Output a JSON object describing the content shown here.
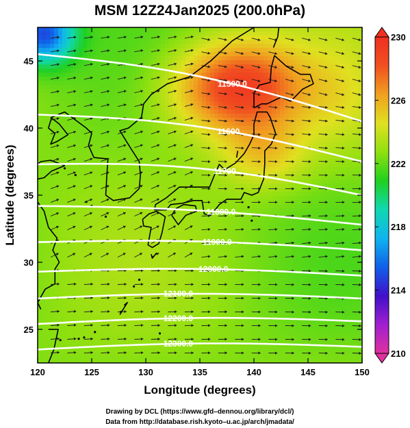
{
  "title": "MSM 12Z24Jan2025 (200.0hPa)",
  "xlabel": "Longitude (degrees)",
  "ylabel": "Latitude  (degrees)",
  "credits": [
    "Drawing by DCL (https://www.gfd–dennou.org/library/dcl/)",
    "Data from http://database.rish.kyoto–u.ac.jp/arch/jmadata/"
  ],
  "colorbar": {
    "min": 210,
    "max": 230,
    "tick_labels": [
      "230",
      "226",
      "222",
      "218",
      "214",
      "210"
    ],
    "colors": [
      "#e0309e",
      "#a020d0",
      "#4010c8",
      "#1060e8",
      "#10b4f0",
      "#10d8b0",
      "#20d020",
      "#90e010",
      "#e0e020",
      "#f0a020",
      "#f05020",
      "#f03020"
    ]
  },
  "chart_data": {
    "type": "heatmap",
    "variable": "temperature field with geopotential height contours and wind vectors",
    "xlim": [
      120,
      150
    ],
    "ylim": [
      22.5,
      47.5
    ],
    "x_ticks": [
      "120",
      "125",
      "130",
      "135",
      "140",
      "145",
      "150"
    ],
    "y_ticks": [
      "45",
      "40",
      "35",
      "30",
      "25"
    ],
    "contours": [
      {
        "label": "11500.0",
        "lat_at_120": 45.5,
        "lat_at_150": 40.5
      },
      {
        "label": "11600",
        "lat_at_120": 41.0,
        "lat_at_150": 37.5
      },
      {
        "label": "11700",
        "lat_at_120": 37.3,
        "lat_at_150": 35.0
      },
      {
        "label": "11800.0",
        "lat_at_120": 34.2,
        "lat_at_150": 32.8
      },
      {
        "label": "11900.0",
        "lat_at_120": 31.5,
        "lat_at_150": 30.9
      },
      {
        "label": "12000.0",
        "lat_at_120": 29.3,
        "lat_at_150": 29.0
      },
      {
        "label": "12100.0",
        "lat_at_120": 27.3,
        "lat_at_150": 27.3
      },
      {
        "label": "12200.0",
        "lat_at_120": 25.4,
        "lat_at_150": 25.6
      },
      {
        "label": "12300.0",
        "lat_at_120": 23.5,
        "lat_at_150": 23.7
      }
    ],
    "warm_core": {
      "lon": 138.5,
      "lat": 43.0,
      "value": 229
    },
    "cold_corner": {
      "lon": 120.5,
      "lat": 47.0,
      "value": 216
    }
  }
}
